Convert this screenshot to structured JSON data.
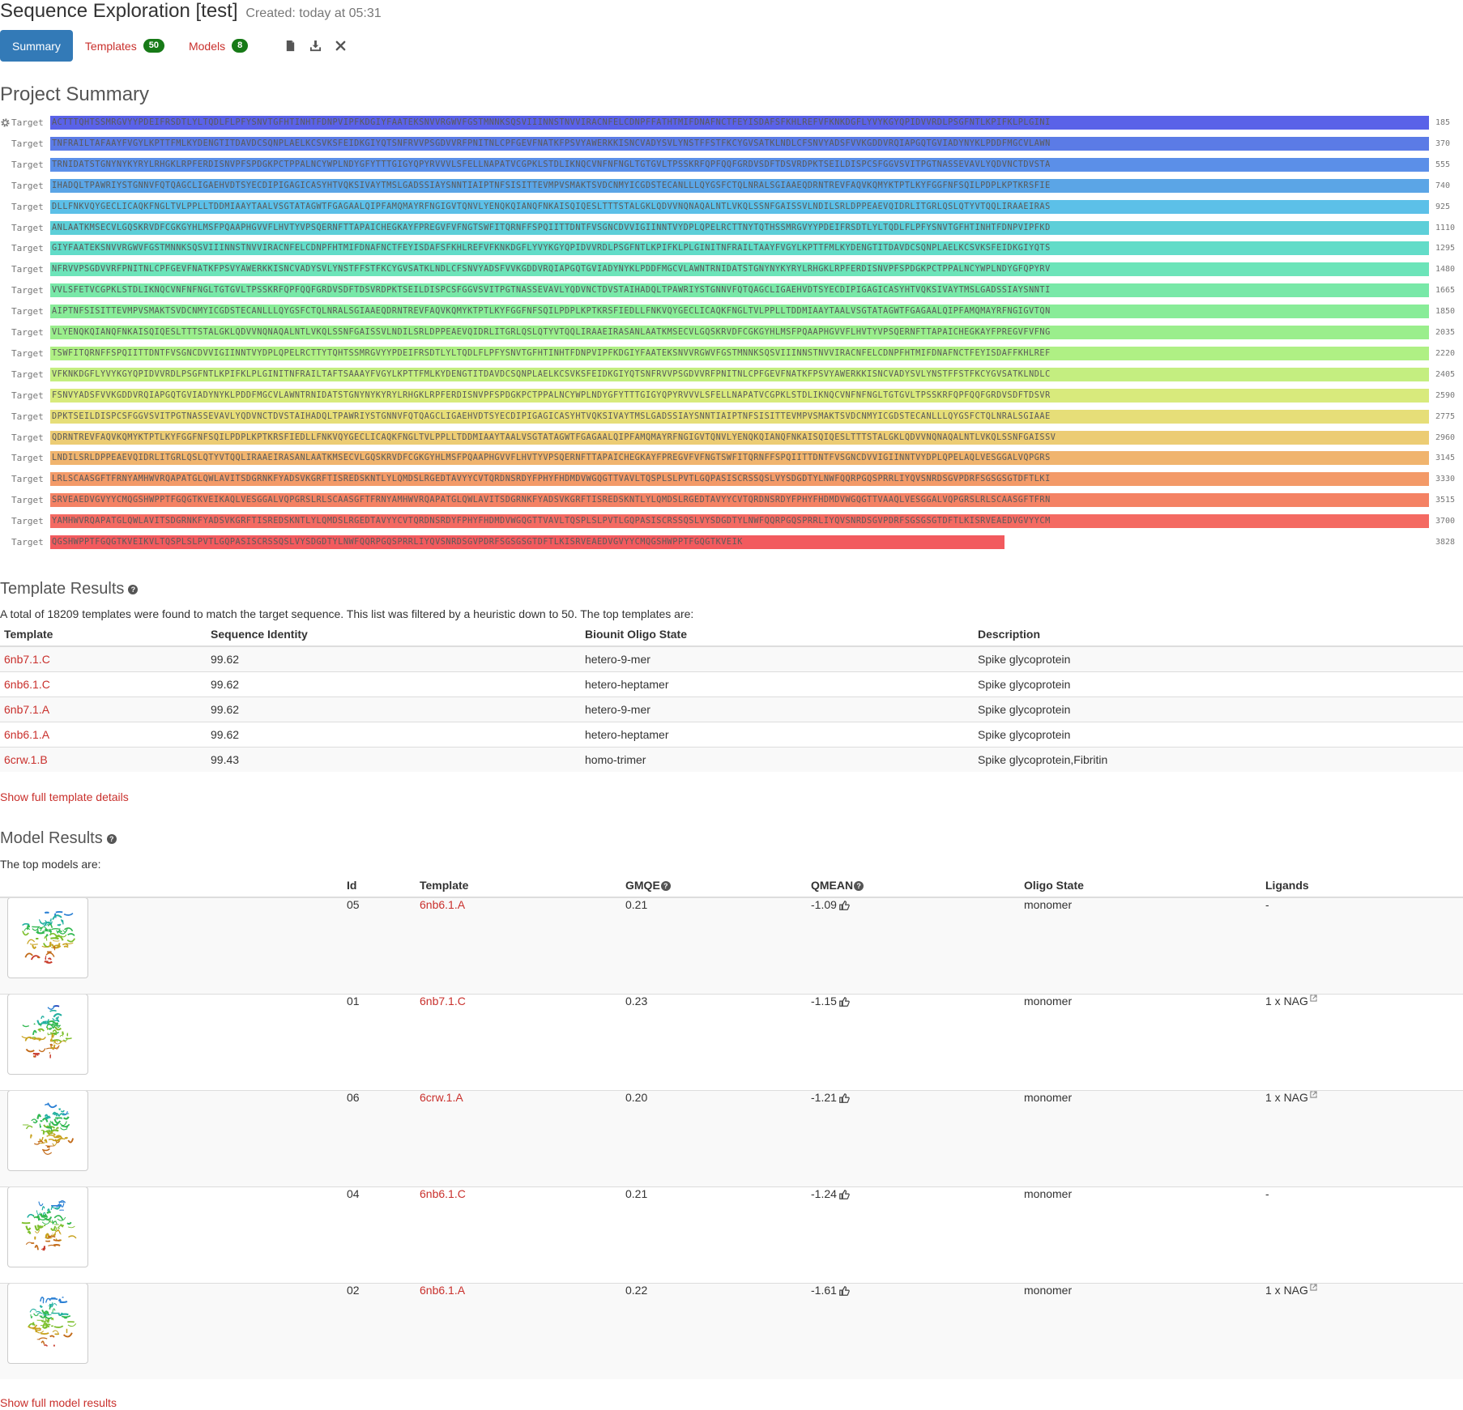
{
  "header": {
    "title": "Sequence Exploration [test]",
    "created": "Created: today at 05:31"
  },
  "tabs": [
    {
      "label": "Summary",
      "active": true,
      "badge": ""
    },
    {
      "label": "Templates",
      "active": false,
      "badge": "50"
    },
    {
      "label": "Models",
      "active": false,
      "badge": "8"
    }
  ],
  "toolbar_icons": [
    "file-icon",
    "download-icon",
    "close-icon"
  ],
  "project_summary": {
    "title": "Project Summary",
    "label": "Target",
    "rows": [
      {
        "seq": "ACTTTQHTSSMRGVYYPDEIFRSDTLYLTQDLFLPFYSNVTGFHTINHTFDNPVIPFKDGIYFAATEKSNVVRGWVFGSTMNNKSQSVIIINNSTNVVIRACNFELCDNPFFATHTMIFDNAFNCTFEYISDAFSFKHLREFVFKNKDGFLYVYKGYQPIDVVRDLPSGFNTLKPIFKLPLGINI",
        "end": "185",
        "color": "#5a62e8"
      },
      {
        "seq": "TNFRAILTAFAAYFVGYLKPTTFMLKYDENGTITDAVDCSQNPLAELKCSVKSFEIDKGIYQTSNFRVVPSGDVVRFPNITNLCPFGEVFNATKFPSVYAWERKKISNCVADYSVLYNSTFFSTFKCYGVSATKLNDLCFSNVYADSFVVKGDDVRQIAPGQTGVIADYNYKLPDDFMGCVLAWN",
        "end": "370",
        "color": "#5b7be6"
      },
      {
        "seq": "TRNIDATSTGNYNYKYRYLRHGKLRPFERDISNVPFSPDGKPCTPPALNCYWPLNDYGFYTTTGIGYQPYRVVVLSFELLNAPATVCGPKLSTDLIKNQCVNFNFNGLTGTGVLTPSSKRFQPFQQFGRDVSDFTDSVRDPKTSEILDISPCSFGGVSVITPGTNASSEVAVLYQDVNCTDVSTA",
        "end": "555",
        "color": "#5b8fe8"
      },
      {
        "seq": "IHADQLTPAWRIYSTGNNVFQTQAGCLIGAEHVDTSYECDIPIGAGICASYHTVQKSIVAYTMSLGADSSIAYSNNTIAIPTNFSISITTEVMPVSMAKTSVDCNMYICGDSTECANLLLQYGSFCTQLNRALSGIAAEQDRNTREVFAQVKQMYKTPTLKYFGGFNFSQILPDPLKPTKRSFIE",
        "end": "740",
        "color": "#5ba5e6"
      },
      {
        "seq": "DLLFNKVQYGECLICAQKFNGLTVLPPLLTDDMIAAYTAALVSGTATAGWTFGAGAALQIPFAMQMAYRFNGIGVTQNVLYENQKQIANQFNKAISQIQESLTTTSTALGKLQDVVNQNAQALNTLVKQLSSNFGAISSVLNDILSRLDPPEAEVQIDRLITGRLQSLQTYVTQQLIRAAEIRAS",
        "end": "925",
        "color": "#5cc0e8"
      },
      {
        "seq": "ANLAATKMSECVLGQSKRVDFCGKGYHLMSFPQAAPHGVVFLHVTYVPSQERNFTTAPAICHEGKAYFPREGVFVFNGTSWFITQRNFFSPQIITTDNTFVSGNCDVVIGIINNTVYDPLQPELRCTTNYTQTHSSMRGVYYPDEIFRSDTLYLTQDLFLPFYSNVTGFHTINHTFDNPVIPFKD",
        "end": "1110",
        "color": "#5dcfd8"
      },
      {
        "seq": "GIYFAATEKSNVVRGWVFGSTMNNKSQSVIIINNSTNVVIRACNFELCDNPFHTMIFDNAFNCTFEYISDAFSFKHLREFVFKNKDGFLYVYKGYQPIDVVRDLPSGFNTLKPIFKLPLGINITNFRAILTAAYFVGYLKPTTFMLKYDENGTITDAVDCSQNPLAELKCSVKSFEIDKGIYQTS",
        "end": "1295",
        "color": "#62dcc8"
      },
      {
        "seq": "NFRVVPSGDVVRFPNITNLCPFGEVFNATKFPSVYAWERKKISNCVADYSVLYNSTFFSTFKCYGVSATKLNDLCFSNVYADSFVVKGDDVRQIAPGQTGVIADYNYKLPDDFMGCVLAWNTRNIDATSTGNYNYKYRYLRHGKLRPFERDISNVPFSPDGKPCTPPALNCYWPLNDYGFQPYRV",
        "end": "1480",
        "color": "#6ce4b9"
      },
      {
        "seq": "VVLSFETVCGPKLSTDLIKNQCVNFNFNGLTGTGVLTPSSKRFQPFQQFGRDVSDFTDSVRDPKTSEILDISPCSFGGVSVITPGTNASSEVAVLYQDVNCTDVSTAIHADQLTPAWRIYSTGNNVFQTQAGCLIGAEHVDTSYECDIPIGAGICASYHTVQKSIVAYTMSLGADSSIAYSNNTI",
        "end": "1665",
        "color": "#78e8a8"
      },
      {
        "seq": "AIPTNFSISITTEVMPVSMAKTSVDCNMYICGDSTECANLLLQYGSFCTQLNRALSGIAAEQDRNTREVFAQVKQMYKTPTLKYFGGFNFSQILPDPLKPTKRSFIEDLLFNKVQYGECLICAQKFNGLTVLPPLLTDDMIAAYTAALVSGTATAGWTFGAGAALQIPFAMQMAYRFNGIGVTQN",
        "end": "1850",
        "color": "#88ec98"
      },
      {
        "seq": "VLYENQKQIANQFNKAISQIQESLTTTSTALGKLQDVVNQNAQALNTLVKQLSSNFGAISSVLNDILSRLDPPEAEVQIDRLITGRLQSLQTYVTQQLIRAAEIRASANLAATKMSECVLGQSKRVDFCGKGYHLMSFPQAAPHGVVFLHVTYVPSQERNFTTAPAICHEGKAYFPREGVFVFNG",
        "end": "2035",
        "color": "#9aee8c"
      },
      {
        "seq": "TSWFITQRNFFSPQIITTDNTFVSGNCDVVIGIINNTVYDPLQPELRCTTYTQHTSSMRGVYYPDEIFRSDTLYLTQDLFLPFYSNVTGFHTINHTFDNPVIPFKDGIYFAATEKSNVVRGWVFGSTMNNKSQSVIIINNSTNVVIRACNFELCDNPFHTMIFDNAFNCTFEYISDAFFKHLREF",
        "end": "2220",
        "color": "#aff084"
      },
      {
        "seq": "VFKNKDGFLYVYKGYQPIDVVRDLPSGFNTLKPIFKLPLGINITNFRAILTAFTSAAAYFVGYLKPTTFMLKYDENGTITDAVDCSQNPLAELKCSVKSFEIDKGIYQTSNFRVVPSGDVVRFPNITNLCPFGEVFNATKFPSVYAWERKKISNCVADYSVLYNSTFFSTFKCYGVSATKLNDLC",
        "end": "2405",
        "color": "#c4ee80"
      },
      {
        "seq": "FSNVYADSFVVKGDDVRQIAPGQTGVIADYNYKLPDDFMGCVLAWNTRNIDATSTGNYNYKYRYLRHGKLRPFERDISNVPFSPDGKPCTPPALNCYWPLNDYGFYTTTGIGYQPYRVVVLSFELLNAPATVCGPKLSTDLIKNQCVNFNFNGLTGTGVLTPSSKRFQPFQQFGRDVSDFTDSVR",
        "end": "2590",
        "color": "#d8ea7c"
      },
      {
        "seq": "DPKTSEILDISPCSFGGVSVITPGTNASSEVAVLYQDVNCTDVSTAIHADQLTPAWRIYSTGNNVFQTQAGCLIGAEHVDTSYECDIPIGAGICASYHTVQKSIVAYTMSLGADSSIAYSNNTIAIPTNFSISITTEVMPVSMAKTSVDCNMYICGDSTECANLLLQYGSFCTQLNRALSGIAAE",
        "end": "2775",
        "color": "#e6de78"
      },
      {
        "seq": "QDRNTREVFAQVKQMYKTPTLKYFGGFNFSQILPDPLKPTKRSFIEDLLFNKVQYGECLICAQKFNGLTVLPPLLTDDMIAAYTAALVSGTATAGWTFGAGAALQIPFAMQMAYRFNGIGVTQNVLYENQKQIANQFNKAISQIQESLTTTSTALGKLQDVVNQNAQALNTLVKQLSSNFGAISSV",
        "end": "2960",
        "color": "#eccc74"
      },
      {
        "seq": "LNDILSRLDPPEAEVQIDRLITGRLQSLQTYVTQQLIRAAEIRASANLAATKMSECVLGQSKRVDFCGKGYHLMSFPQAAPHGVVFLHVTYVPSQERNFTTAPAICHEGKAYFPREGVFVFNGTSWFITQRNFFSPQIITTDNTFVSGNCDVVIGIINNTVYDPLQPELAQLVESGGALVQPGRS",
        "end": "3145",
        "color": "#f0b46e"
      },
      {
        "seq": "LRLSCAASGFTFRNYAMHWVRQAPATGLQWLAVITSDGRNKFYADSVKGRFTISREDSKNTLYLQMDSLRGEDTAVYYCVTQRDNSRDYFPHYFHDMDVWGQGTTVAVLTQSPLSLPVTLGQPASISCRSSQSLVYSDGDTYLNWFQQRPGQSPRRLIYQVSNRDSGVPDRFSGSGSGTDFTLKI",
        "end": "3330",
        "color": "#f39a68"
      },
      {
        "seq": "SRVEAEDVGVYYCMQGSHWPPTFGQGTKVEIKAQLVESGGALVQPGRSLRLSCAASGFTFRNYAMHWVRQAPATGLQWLAVITSDGRNKFYADSVKGRFTISREDSKNTLYLQMDSLRGEDTAVYYCVTQRDNSRDYFPHYFHDMDVWGQGTTVAAQLVESGGALVQPGRSLRLSCAASGFTFRN",
        "end": "3515",
        "color": "#f48264"
      },
      {
        "seq": "YAMHWVRQAPATGLQWLAVITSDGRNKFYADSVKGRFTISREDSKNTLYLQMDSLRGEDTAVYYCVTQRDNSRDYFPHYFHDMDVWGQGTTVAVLTQSPLSLPVTLGQPASISCRSSQSLVYSDGDTYLNWFQQRPGQSPRRLIYQVSNRDSGVPDRFSGSGSGTDFTLKISRVEAEDVGVYYCM",
        "end": "3700",
        "color": "#f46a62"
      },
      {
        "seq": "QGSHWPPTFGQGTKVEIKVLTQSPLSLPVTLGQPASISCRSSQSLVYSDGDTYLNWFQQRPGQSPRRLIYQVSNRDSGVPDRFSGSGSGTDFTLKISRVEAEDVGVYYCMQGSHWPPTFGQGTKVEIK",
        "end": "3828",
        "color": "#f25a5e"
      }
    ]
  },
  "template_results": {
    "title": "Template Results",
    "intro": "A total of 18209 templates were found to match the target sequence. This list was filtered by a heuristic down to 50. The top templates are:",
    "columns": [
      "Template",
      "Sequence Identity",
      "Biounit Oligo State",
      "Description"
    ],
    "rows": [
      {
        "template": "6nb7.1.C",
        "identity": "99.62",
        "oligo": "hetero-9-mer",
        "description": "Spike glycoprotein"
      },
      {
        "template": "6nb6.1.C",
        "identity": "99.62",
        "oligo": "hetero-heptamer",
        "description": "Spike glycoprotein"
      },
      {
        "template": "6nb7.1.A",
        "identity": "99.62",
        "oligo": "hetero-9-mer",
        "description": "Spike glycoprotein"
      },
      {
        "template": "6nb6.1.A",
        "identity": "99.62",
        "oligo": "hetero-heptamer",
        "description": "Spike glycoprotein"
      },
      {
        "template": "6crw.1.B",
        "identity": "99.43",
        "oligo": "homo-trimer",
        "description": "Spike glycoprotein,Fibritin"
      }
    ],
    "show_more": "Show full template details"
  },
  "model_results": {
    "title": "Model Results",
    "intro": "The top models are:",
    "columns": [
      "",
      "Id",
      "Template",
      "GMQE",
      "QMEAN",
      "Oligo State",
      "Ligands"
    ],
    "rows": [
      {
        "id": "05",
        "template": "6nb6.1.A",
        "gmqe": "0.21",
        "qmean": "-1.09",
        "oligo": "monomer",
        "ligands": "-"
      },
      {
        "id": "01",
        "template": "6nb7.1.C",
        "gmqe": "0.23",
        "qmean": "-1.15",
        "oligo": "monomer",
        "ligands": "1 x NAG"
      },
      {
        "id": "06",
        "template": "6crw.1.A",
        "gmqe": "0.20",
        "qmean": "-1.21",
        "oligo": "monomer",
        "ligands": "1 x NAG"
      },
      {
        "id": "04",
        "template": "6nb6.1.C",
        "gmqe": "0.21",
        "qmean": "-1.24",
        "oligo": "monomer",
        "ligands": "-"
      },
      {
        "id": "02",
        "template": "6nb6.1.A",
        "gmqe": "0.22",
        "qmean": "-1.61",
        "oligo": "monomer",
        "ligands": "1 x NAG"
      }
    ],
    "show_more": "Show full model results"
  }
}
